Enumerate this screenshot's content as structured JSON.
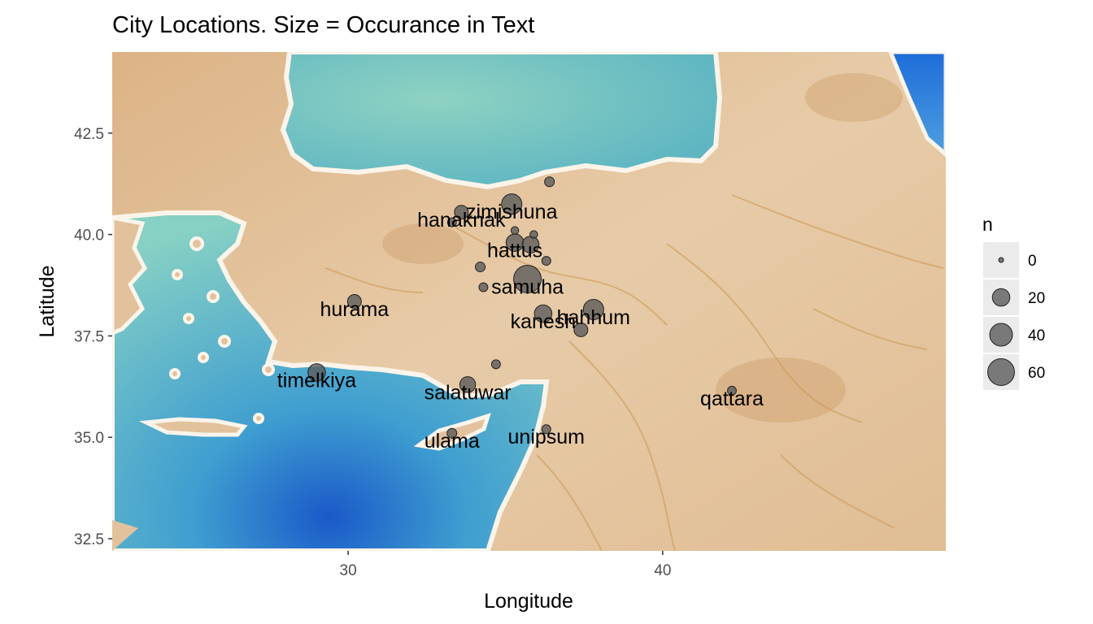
{
  "chart_data": {
    "type": "scatter",
    "title": "City Locations. Size = Occurance in Text",
    "xlabel": "Longitude",
    "ylabel": "Latitude",
    "xlim": [
      22.5,
      49
    ],
    "ylim": [
      32.2,
      44.5
    ],
    "x_ticks": [
      30,
      40
    ],
    "x_tick_labels": [
      "30",
      "40"
    ],
    "y_ticks": [
      32.5,
      35.0,
      37.5,
      40.0,
      42.5
    ],
    "y_tick_labels": [
      "32.5",
      "35.0",
      "37.5",
      "40.0",
      "42.5"
    ],
    "background": "watercolor terrain map",
    "grid": false,
    "legend": {
      "title": "n",
      "placement": "right",
      "entries": [
        {
          "label": "0",
          "value": 0
        },
        {
          "label": "20",
          "value": 20
        },
        {
          "label": "40",
          "value": 40
        },
        {
          "label": "60",
          "value": 60
        }
      ]
    },
    "point_color": "#595959",
    "points": [
      {
        "name": "zimishuna",
        "lon": 35.2,
        "lat": 40.75,
        "n": 30,
        "labeled": true
      },
      {
        "name": "hanaknak",
        "lon": 33.6,
        "lat": 40.55,
        "n": 10,
        "labeled": true
      },
      {
        "name": "hattus",
        "lon": 35.3,
        "lat": 39.8,
        "n": 20,
        "labeled": true
      },
      {
        "name": "samuha",
        "lon": 35.7,
        "lat": 38.9,
        "n": 65,
        "labeled": true
      },
      {
        "name": "kanesh",
        "lon": 36.2,
        "lat": 38.05,
        "n": 20,
        "labeled": true
      },
      {
        "name": "hahhum",
        "lon": 37.8,
        "lat": 38.15,
        "n": 30,
        "labeled": true
      },
      {
        "name": "hurama",
        "lon": 30.2,
        "lat": 38.35,
        "n": 10,
        "labeled": true
      },
      {
        "name": "timelkiya",
        "lon": 29.0,
        "lat": 36.6,
        "n": 20,
        "labeled": true
      },
      {
        "name": "salatuwar",
        "lon": 33.8,
        "lat": 36.3,
        "n": 15,
        "labeled": true
      },
      {
        "name": "ulama",
        "lon": 33.3,
        "lat": 35.1,
        "n": 3,
        "labeled": true
      },
      {
        "name": "unipsum",
        "lon": 36.3,
        "lat": 35.2,
        "n": 2,
        "labeled": true
      },
      {
        "name": "qattara",
        "lon": 42.2,
        "lat": 36.15,
        "n": 2,
        "labeled": true
      },
      {
        "name": "",
        "lon": 36.4,
        "lat": 41.3,
        "n": 3,
        "labeled": false
      },
      {
        "name": "",
        "lon": 33.3,
        "lat": 40.3,
        "n": 2,
        "labeled": false
      },
      {
        "name": "",
        "lon": 35.3,
        "lat": 40.1,
        "n": 1,
        "labeled": false
      },
      {
        "name": "",
        "lon": 35.9,
        "lat": 40.0,
        "n": 1,
        "labeled": false
      },
      {
        "name": "",
        "lon": 35.8,
        "lat": 39.75,
        "n": 18,
        "labeled": false
      },
      {
        "name": "",
        "lon": 36.3,
        "lat": 39.35,
        "n": 2,
        "labeled": false
      },
      {
        "name": "",
        "lon": 34.2,
        "lat": 39.2,
        "n": 3,
        "labeled": false
      },
      {
        "name": "",
        "lon": 34.3,
        "lat": 38.7,
        "n": 2,
        "labeled": false
      },
      {
        "name": "",
        "lon": 37.4,
        "lat": 37.65,
        "n": 10,
        "labeled": false
      },
      {
        "name": "",
        "lon": 34.7,
        "lat": 36.8,
        "n": 2,
        "labeled": false
      }
    ]
  },
  "colors": {
    "land": "#e2c29c",
    "land_dark": "#cfa26d",
    "sea": "#7fc8c4",
    "sea_deep": "#2d7fd6",
    "coast": "#fbf4ea",
    "legend_key_bg": "#ebebeb"
  }
}
